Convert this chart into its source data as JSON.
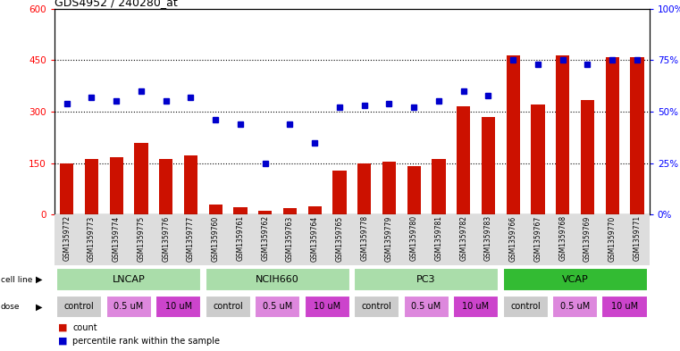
{
  "title": "GDS4952 / 240280_at",
  "samples": [
    "GSM1359772",
    "GSM1359773",
    "GSM1359774",
    "GSM1359775",
    "GSM1359776",
    "GSM1359777",
    "GSM1359760",
    "GSM1359761",
    "GSM1359762",
    "GSM1359763",
    "GSM1359764",
    "GSM1359765",
    "GSM1359778",
    "GSM1359779",
    "GSM1359780",
    "GSM1359781",
    "GSM1359782",
    "GSM1359783",
    "GSM1359766",
    "GSM1359767",
    "GSM1359768",
    "GSM1359769",
    "GSM1359770",
    "GSM1359771"
  ],
  "bar_values": [
    148,
    163,
    167,
    210,
    162,
    172,
    28,
    20,
    10,
    18,
    25,
    127,
    148,
    153,
    140,
    163,
    315,
    285,
    465,
    320,
    465,
    335,
    458,
    458
  ],
  "dot_values": [
    54,
    57,
    55,
    60,
    55,
    57,
    46,
    44,
    25,
    44,
    35,
    52,
    53,
    54,
    52,
    55,
    60,
    58,
    75,
    73,
    75,
    73,
    75,
    75
  ],
  "bar_color": "#cc1100",
  "dot_color": "#0000cc",
  "ylim_left": [
    0,
    600
  ],
  "ylim_right": [
    0,
    100
  ],
  "yticks_left": [
    0,
    150,
    300,
    450,
    600
  ],
  "yticks_right": [
    0,
    25,
    50,
    75,
    100
  ],
  "ytick_labels_left": [
    "0",
    "150",
    "300",
    "450",
    "600"
  ],
  "ytick_labels_right": [
    "0%",
    "25%",
    "50%",
    "75%",
    "100%"
  ],
  "hlines": [
    150,
    300,
    450
  ],
  "cell_groups": [
    {
      "label": "LNCAP",
      "start": 0,
      "end": 6,
      "color": "#aaddaa"
    },
    {
      "label": "NCIH660",
      "start": 6,
      "end": 12,
      "color": "#aaddaa"
    },
    {
      "label": "PC3",
      "start": 12,
      "end": 18,
      "color": "#aaddaa"
    },
    {
      "label": "VCAP",
      "start": 18,
      "end": 24,
      "color": "#33bb33"
    }
  ],
  "dose_groups": [
    {
      "label": "control",
      "start": 0,
      "end": 2,
      "color": "#cccccc"
    },
    {
      "label": "0.5 uM",
      "start": 2,
      "end": 4,
      "color": "#dd88dd"
    },
    {
      "label": "10 uM",
      "start": 4,
      "end": 6,
      "color": "#cc44cc"
    },
    {
      "label": "control",
      "start": 6,
      "end": 8,
      "color": "#cccccc"
    },
    {
      "label": "0.5 uM",
      "start": 8,
      "end": 10,
      "color": "#dd88dd"
    },
    {
      "label": "10 uM",
      "start": 10,
      "end": 12,
      "color": "#cc44cc"
    },
    {
      "label": "control",
      "start": 12,
      "end": 14,
      "color": "#cccccc"
    },
    {
      "label": "0.5 uM",
      "start": 14,
      "end": 16,
      "color": "#dd88dd"
    },
    {
      "label": "10 uM",
      "start": 16,
      "end": 18,
      "color": "#cc44cc"
    },
    {
      "label": "control",
      "start": 18,
      "end": 20,
      "color": "#cccccc"
    },
    {
      "label": "0.5 uM",
      "start": 20,
      "end": 22,
      "color": "#dd88dd"
    },
    {
      "label": "10 uM",
      "start": 22,
      "end": 24,
      "color": "#cc44cc"
    }
  ],
  "legend_count_label": "count",
  "legend_dot_label": "percentile rank within the sample",
  "cell_line_label": "cell line",
  "dose_label": "dose",
  "bg_color": "#ffffff",
  "xtick_bg": "#dddddd",
  "fig_width": 7.61,
  "fig_height": 3.93,
  "dpi": 100
}
